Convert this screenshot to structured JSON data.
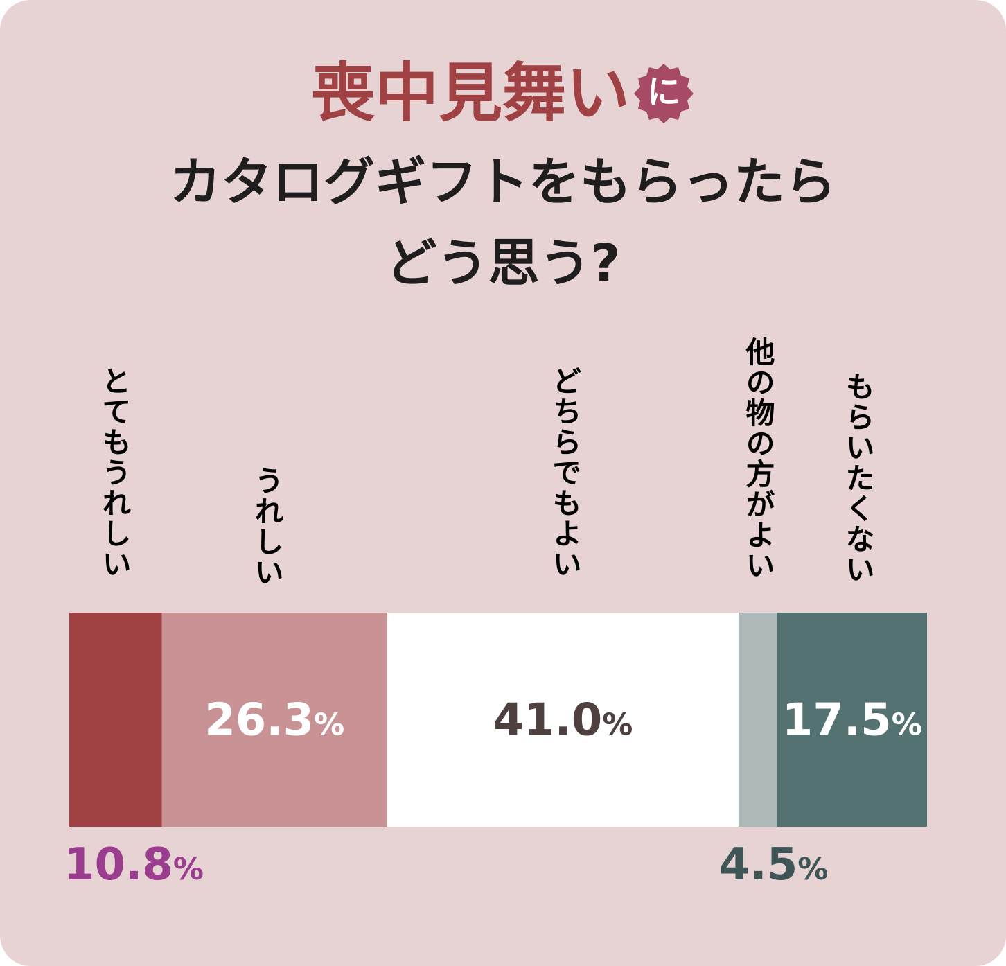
{
  "title": {
    "line1": "喪中見舞い",
    "badge": "に",
    "line2": "カタログギフトをもらったら",
    "line3": "どう思う?"
  },
  "chart_data": {
    "type": "bar",
    "stacked": true,
    "orientation": "horizontal",
    "unit": "%",
    "categories": [
      "とてもうれしい",
      "うれしい",
      "どちらでもよい",
      "他の物の方がよい",
      "もらいたくない"
    ],
    "values": [
      10.8,
      26.3,
      41.0,
      4.5,
      17.5
    ],
    "value_labels": [
      "10.8",
      "26.3",
      "41.0",
      "4.5",
      "17.5"
    ],
    "colors": [
      "#a04143",
      "#c99294",
      "#ffffff",
      "#adb9b9",
      "#547272"
    ],
    "label_colors": [
      "#a04143",
      "#a04143",
      "#4f4040",
      "#3f5454",
      "#3f5454"
    ],
    "value_label_colors": [
      "#9a3d8e",
      "#ffffff",
      "#4f4040",
      "#3f5454",
      "#ffffff"
    ],
    "value_label_position": [
      "below",
      "inside",
      "inside",
      "below",
      "inside"
    ]
  }
}
